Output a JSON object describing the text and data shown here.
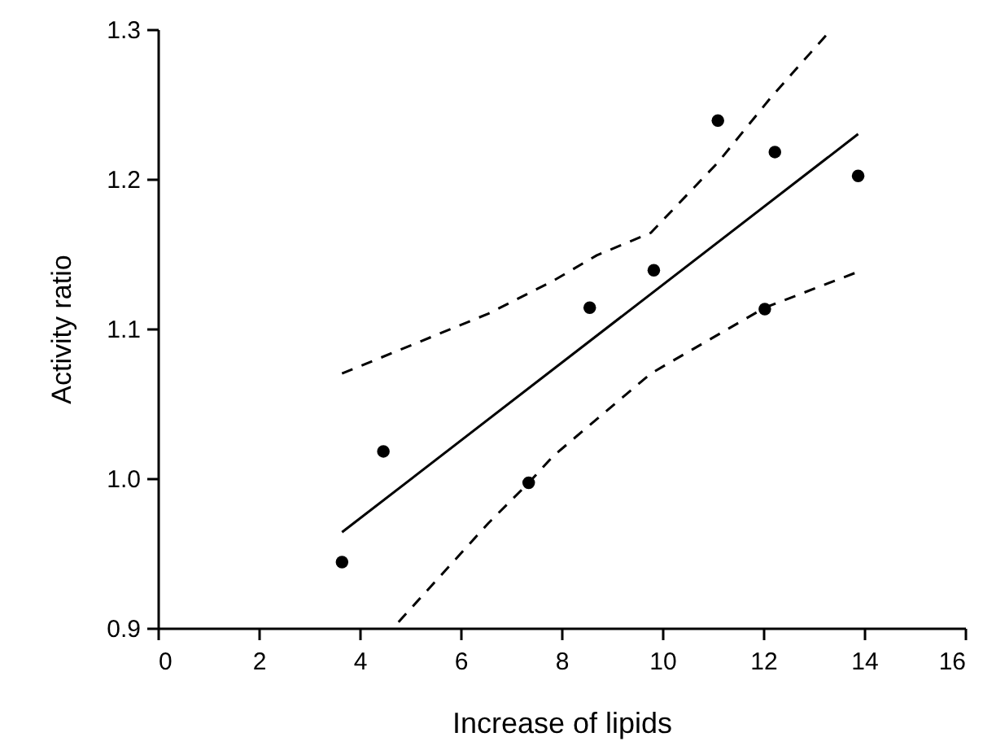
{
  "chart_data": {
    "type": "scatter",
    "xlabel": "Increase of lipids",
    "ylabel": "Activity ratio",
    "xlim": [
      0,
      16
    ],
    "xticks": [
      0,
      2,
      4,
      6,
      8,
      10,
      12,
      14,
      16
    ],
    "ylim": [
      0.9,
      1.3
    ],
    "yticks": [
      0.9,
      {
        "value": 1.0,
        "label": "1.0"
      },
      1.1,
      1.2,
      1.3
    ],
    "grid": false,
    "series": [
      {
        "color": "#000000",
        "marker": "circle",
        "x": [
          3.65,
          4.47,
          7.35,
          8.56,
          9.83,
          11.1,
          12.23,
          12.03,
          13.88
        ],
        "values": [
          0.944,
          1.018,
          0.997,
          1.114,
          1.139,
          1.239,
          1.218,
          1.113,
          1.202
        ]
      },
      {
        "type": "line",
        "color": "#000000",
        "line_style": "solid",
        "marker": "none",
        "x": [
          3.65,
          13.88
        ],
        "values": [
          0.964,
          1.23
        ]
      },
      {
        "type": "line",
        "color": "#000000",
        "line_style": "dashed",
        "marker": "none",
        "x": [
          3.65,
          6.55,
          7.84,
          8.7,
          9.77,
          11.1,
          12.14,
          13.35
        ],
        "values": [
          1.07,
          1.11,
          1.132,
          1.149,
          1.164,
          1.211,
          1.254,
          1.3
        ]
      },
      {
        "type": "line",
        "color": "#000000",
        "line_style": "dashed",
        "marker": "none",
        "x": [
          4.77,
          6.55,
          7.35,
          7.84,
          9.77,
          12.03,
          13.88
        ],
        "values": [
          0.904,
          0.97,
          0.997,
          1.015,
          1.07,
          1.114,
          1.138
        ]
      }
    ]
  }
}
